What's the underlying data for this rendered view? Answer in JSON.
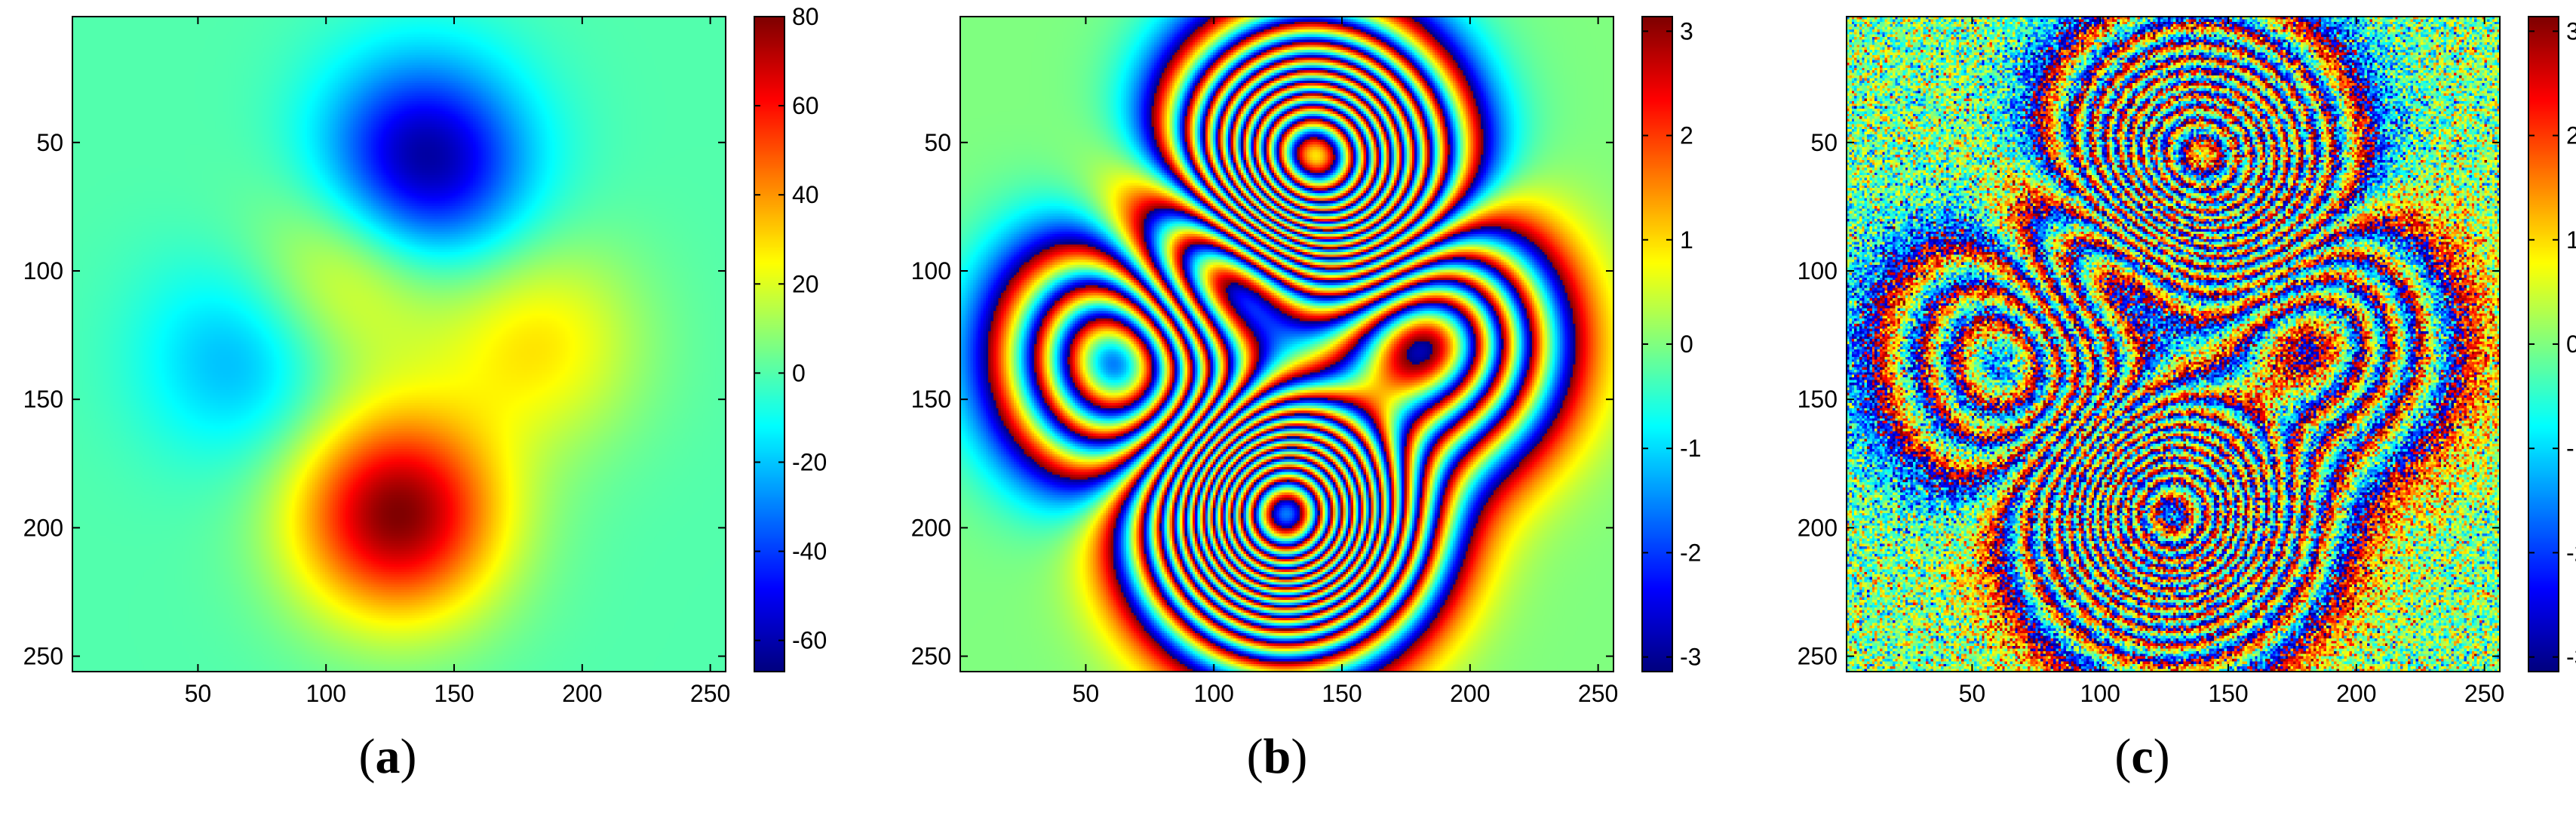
{
  "chart_data": [
    {
      "type": "heatmap",
      "panel_label": "(a)",
      "label_letter": "a",
      "field": "phase_unwrapped",
      "xlim": [
        1,
        256
      ],
      "ylim": [
        1,
        256
      ],
      "y_reversed": true,
      "x_ticks": [
        50,
        100,
        150,
        200,
        250
      ],
      "y_ticks": [
        50,
        100,
        150,
        200,
        250
      ],
      "colormap": "jet",
      "colorbar": {
        "range": [
          -67,
          80
        ],
        "ticks": [
          80,
          60,
          40,
          20,
          0,
          -20,
          -40,
          -60
        ]
      },
      "peaks": [
        {
          "x": 138,
          "y": 58,
          "amplitude": -67
        },
        {
          "x": 128,
          "y": 195,
          "amplitude": 80
        },
        {
          "x": 68,
          "y": 133,
          "amplitude": -25
        },
        {
          "x": 183,
          "y": 128,
          "amplitude": 28
        },
        {
          "x": 108,
          "y": 100,
          "amplitude": 30
        }
      ]
    },
    {
      "type": "heatmap",
      "panel_label": "(b)",
      "label_letter": "b",
      "field": "phase_wrapped",
      "xlim": [
        1,
        256
      ],
      "ylim": [
        1,
        256
      ],
      "y_reversed": true,
      "x_ticks": [
        50,
        100,
        150,
        200,
        250
      ],
      "y_ticks": [
        50,
        100,
        150,
        200,
        250
      ],
      "colormap": "jet",
      "colorbar": {
        "range": [
          -3.14,
          3.14
        ],
        "ticks": [
          3,
          2,
          1,
          0,
          -1,
          -2,
          -3
        ]
      }
    },
    {
      "type": "heatmap",
      "panel_label": "(c)",
      "label_letter": "c",
      "field": "phase_wrapped_noisy",
      "xlim": [
        1,
        256
      ],
      "ylim": [
        1,
        256
      ],
      "y_reversed": true,
      "x_ticks": [
        50,
        100,
        150,
        200,
        250
      ],
      "y_ticks": [
        50,
        100,
        150,
        200,
        250
      ],
      "colormap": "jet",
      "colorbar": {
        "range": [
          -3.14,
          3.14
        ],
        "ticks": [
          3,
          2,
          1,
          0,
          -1,
          -2,
          -3
        ]
      }
    }
  ]
}
